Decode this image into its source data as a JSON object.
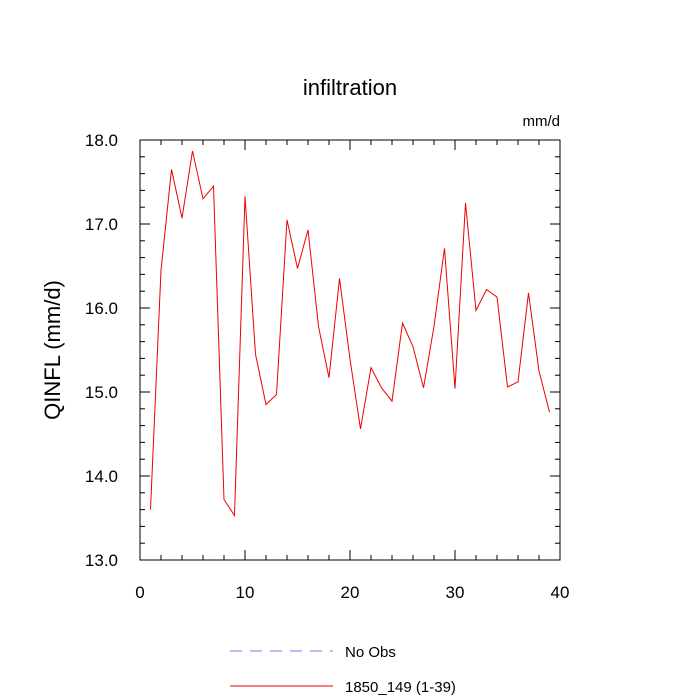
{
  "chart_data": {
    "type": "line",
    "title": "infiltration",
    "units_label": "mm/d",
    "ylabel": "QINFL  (mm/d)",
    "xlabel": "",
    "xlim": [
      0,
      40
    ],
    "ylim": [
      13.0,
      18.0
    ],
    "x_ticks": [
      0,
      10,
      20,
      30,
      40
    ],
    "x_tick_labels": [
      "0",
      "10",
      "20",
      "30",
      "40"
    ],
    "y_ticks": [
      13.0,
      14.0,
      15.0,
      16.0,
      17.0,
      18.0
    ],
    "y_tick_labels": [
      "13.0",
      "14.0",
      "15.0",
      "16.0",
      "17.0",
      "18.0"
    ],
    "grid": false,
    "legend_position": "bottom-center",
    "series": [
      {
        "name": "No Obs",
        "color": "#7777ee",
        "dash": true,
        "x": [],
        "values": []
      },
      {
        "name": "1850_149 (1-39)",
        "color": "#ee0000",
        "dash": false,
        "x": [
          1,
          2,
          3,
          4,
          5,
          6,
          7,
          8,
          9,
          10,
          11,
          12,
          13,
          14,
          15,
          16,
          17,
          18,
          19,
          20,
          21,
          22,
          23,
          24,
          25,
          26,
          27,
          28,
          29,
          30,
          31,
          32,
          33,
          34,
          35,
          36,
          37,
          38,
          39
        ],
        "values": [
          13.6,
          16.45,
          17.65,
          17.07,
          17.87,
          17.3,
          17.45,
          13.72,
          13.53,
          17.33,
          15.45,
          14.85,
          14.97,
          17.05,
          16.47,
          16.93,
          15.78,
          15.17,
          16.35,
          15.39,
          14.56,
          15.29,
          15.05,
          14.89,
          15.82,
          15.54,
          15.05,
          15.78,
          16.71,
          15.04,
          17.25,
          15.97,
          16.22,
          16.13,
          15.06,
          15.12,
          16.18,
          15.25,
          14.76
        ]
      }
    ]
  }
}
